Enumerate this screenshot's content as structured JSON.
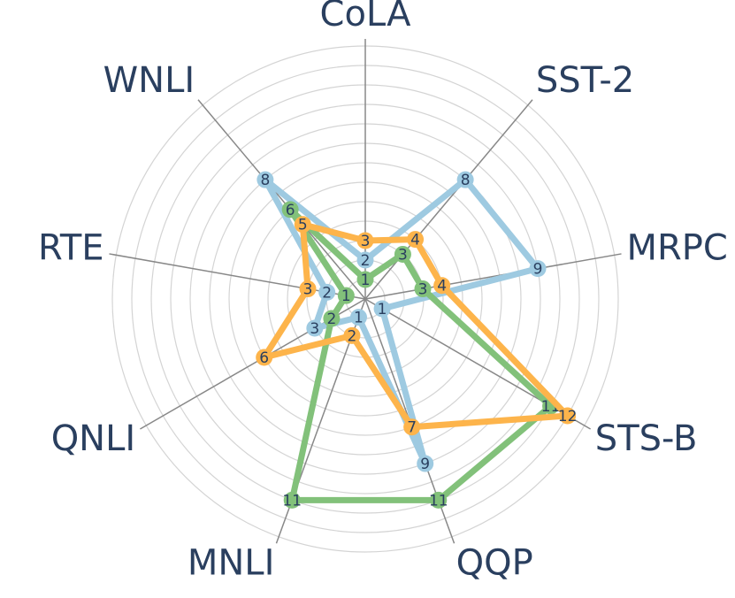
{
  "chart_data": {
    "type": "radar",
    "categories": [
      "CoLA",
      "SST-2",
      "MRPC",
      "STS-B",
      "QQP",
      "MNLI",
      "QNLI",
      "RTE",
      "WNLI"
    ],
    "rlim": [
      0,
      13
    ],
    "rticks": [
      1,
      2,
      3,
      4,
      5,
      6,
      7,
      8,
      9,
      10,
      11,
      12,
      13
    ],
    "grid": true,
    "series": [
      {
        "color": "#9ecae1",
        "values": [
          2,
          8,
          9,
          1,
          9,
          1,
          3,
          2,
          8
        ]
      },
      {
        "color": "#82c17a",
        "values": [
          1,
          3,
          3,
          11,
          11,
          11,
          2,
          1,
          6
        ]
      },
      {
        "color": "#fdb44b",
        "values": [
          3,
          4,
          4,
          12,
          7,
          2,
          6,
          3,
          5
        ]
      }
    ]
  }
}
